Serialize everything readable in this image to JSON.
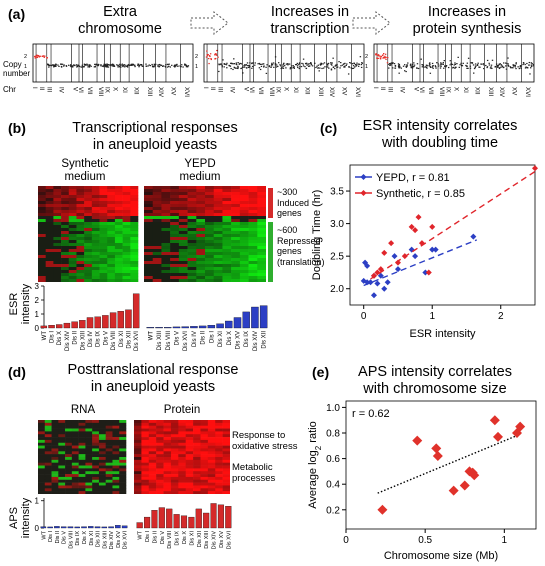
{
  "panel_a": {
    "label": "(a)",
    "steps": [
      "Extra\nchromosome",
      "Increases in\ntranscription",
      "Increases in\nprotein synthesis"
    ],
    "ylabel": "Copy\nnumber",
    "row_label": "Chr",
    "chromosomes": [
      "I",
      "II",
      "III",
      "IV",
      "V",
      "VI",
      "VII",
      "VIII",
      "IX",
      "X",
      "XI",
      "XII",
      "XIII",
      "XIV",
      "XV",
      "XVI"
    ],
    "colors": {
      "normal": "#222222",
      "amplified": "#e8302a"
    }
  },
  "panel_b": {
    "label": "(b)",
    "title": "Transcriptional responses\nin aneuploid yeasts",
    "col1": "Synthetic\nmedium",
    "col2": "YEPD\nmedium",
    "induced": "~300\nInduced\ngenes",
    "repressed": "~600\nRepressed\ngenes\n(translation)",
    "ylabel": "ESR\nintensity",
    "yticks": [
      "0",
      "1",
      "2",
      "3"
    ],
    "syn_labels": [
      "WT",
      "Dis I",
      "Dis X",
      "Dis XIV",
      "Dis II",
      "Dis XIII",
      "Dis IV",
      "Dis IX",
      "Dis V",
      "Dis VIII",
      "Dis XI",
      "Dis XII",
      "Dis XVI"
    ],
    "syn_values": [
      0.15,
      0.2,
      0.25,
      0.35,
      0.45,
      0.55,
      0.75,
      0.8,
      0.9,
      1.1,
      1.2,
      1.3,
      2.45
    ],
    "yepd_labels": [
      "WT",
      "Dis XIII",
      "Dis VIII",
      "Dis V",
      "Dis XVI",
      "Dis IV",
      "Dis II",
      "Dis I",
      "Dis XI",
      "Dis X",
      "Dis XV",
      "Dis IX",
      "Dis XIV",
      "Dis XII"
    ],
    "yepd_values": [
      0.05,
      0.05,
      0.05,
      0.08,
      0.1,
      0.12,
      0.15,
      0.2,
      0.3,
      0.5,
      0.75,
      1.15,
      1.5,
      1.6
    ],
    "colors": {
      "syn": "#d42a2a",
      "yepd": "#2c3fc4",
      "induced": "#d42a2a",
      "repressed": "#2fae2f"
    }
  },
  "panel_c": {
    "label": "(c)",
    "title": "ESR intensity correlates\nwith doubling time",
    "chart_data": {
      "type": "scatter",
      "xlabel": "ESR intensity",
      "ylabel": "Doubling Time (hr)",
      "xlim": [
        -0.2,
        2.5
      ],
      "ylim": [
        1.75,
        3.9
      ],
      "xticks": [
        "0",
        "1",
        "2"
      ],
      "yticks": [
        "2.0",
        "2.5",
        "3.0",
        "3.5"
      ],
      "series": [
        {
          "name": "YEPD, r = 0.81",
          "color": "#2c3fc4",
          "x": [
            0.0,
            0.02,
            0.05,
            0.1,
            0.15,
            0.2,
            0.25,
            0.3,
            0.35,
            0.5,
            0.7,
            0.75,
            0.9,
            1.0,
            1.6,
            0.05,
            0.15,
            0.45,
            1.05
          ],
          "y": [
            2.12,
            2.4,
            2.35,
            2.1,
            1.9,
            2.08,
            2.2,
            2.0,
            2.1,
            2.3,
            2.6,
            2.5,
            2.25,
            2.6,
            2.8,
            2.1,
            2.2,
            2.5,
            2.6
          ],
          "fit": [
            [
              0.0,
              2.05
            ],
            [
              1.65,
              2.75
            ]
          ]
        },
        {
          "name": "Synthetic, r = 0.85",
          "color": "#e0252b",
          "x": [
            0.15,
            0.2,
            0.3,
            0.4,
            0.5,
            0.6,
            0.7,
            0.75,
            0.8,
            0.85,
            0.95,
            1.0,
            2.5,
            0.25
          ],
          "y": [
            2.2,
            2.25,
            2.55,
            2.7,
            2.4,
            2.5,
            2.95,
            2.9,
            3.1,
            2.7,
            2.25,
            2.95,
            3.85,
            2.3
          ],
          "fit": [
            [
              0.1,
              2.15
            ],
            [
              2.5,
              3.8
            ]
          ]
        }
      ]
    }
  },
  "panel_d": {
    "label": "(d)",
    "title": "Posttranslational response\nin aneuploid yeasts",
    "col1": "RNA",
    "col2": "Protein",
    "note1": "Response to\noxidative stress",
    "note2": "Metabolic\nprocesses",
    "ylabel": "APS\nintensity",
    "yticks": [
      "0",
      "1"
    ],
    "rna_labels": [
      "WT",
      "Dis I",
      "Dis II",
      "Dis V",
      "Dis VIII",
      "Dis IX",
      "Dis X",
      "Dis XI",
      "Dis XII",
      "Dis XIII",
      "Dis XIV",
      "Dis XV",
      "Dis XVI"
    ],
    "rna_values": [
      0.05,
      0.04,
      0.06,
      0.05,
      0.05,
      0.04,
      0.05,
      0.06,
      0.05,
      0.04,
      0.05,
      0.1,
      0.08
    ],
    "protein_labels": [
      "WT",
      "Dis I",
      "Dis II",
      "Dis V",
      "Dis VIII",
      "Dis IX",
      "Dis X",
      "Dis XI",
      "Dis XII",
      "Dis XIII",
      "Dis XIV",
      "Dis XV",
      "Dis XVI"
    ],
    "protein_values": [
      0.2,
      0.4,
      0.65,
      0.75,
      0.7,
      0.5,
      0.45,
      0.4,
      0.7,
      0.55,
      0.9,
      0.85,
      0.8
    ],
    "colors": {
      "rna": "#2c3fc4",
      "protein": "#d42a2a"
    }
  },
  "panel_e": {
    "label": "(e)",
    "title": "APS intensity correlates\nwith chromosome size",
    "chart_data": {
      "type": "scatter",
      "annotation": "r = 0.62",
      "xlabel": "Chromosome size (Mb)",
      "ylabel": "Average log2 ratio",
      "xlim": [
        0,
        1.2
      ],
      "ylim": [
        0.05,
        1.05
      ],
      "xticks": [
        "0",
        "0.5",
        "1"
      ],
      "yticks": [
        "0.2",
        "0.4",
        "0.6",
        "0.8",
        "1.0"
      ],
      "color": "#e0322b",
      "x": [
        0.23,
        0.45,
        0.57,
        0.58,
        0.68,
        0.75,
        0.78,
        0.8,
        0.81,
        0.94,
        0.96,
        1.08,
        1.1
      ],
      "y": [
        0.2,
        0.74,
        0.68,
        0.62,
        0.35,
        0.39,
        0.5,
        0.49,
        0.47,
        0.9,
        0.77,
        0.8,
        0.85
      ],
      "fit": [
        [
          0.2,
          0.33
        ],
        [
          1.1,
          0.79
        ]
      ]
    }
  }
}
